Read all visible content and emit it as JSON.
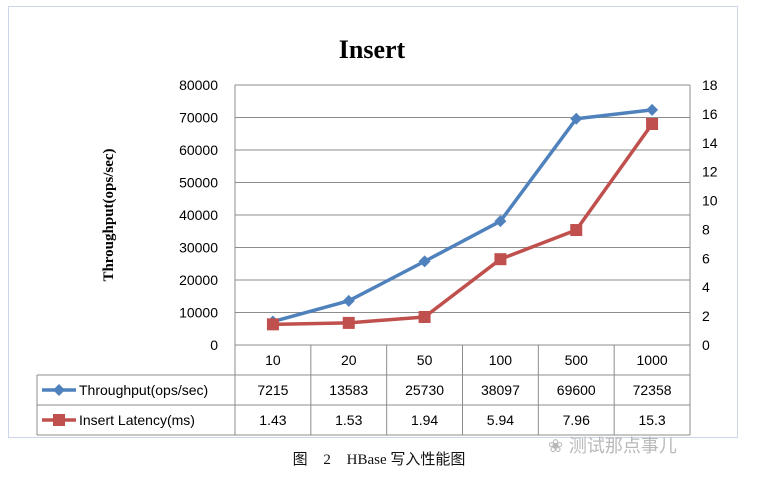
{
  "chart_data": {
    "type": "line",
    "title": "Insert",
    "ylabel": "Throughput(ops/sec)",
    "categories": [
      "10",
      "20",
      "50",
      "100",
      "500",
      "1000"
    ],
    "ylim": [
      0,
      80000
    ],
    "yticks": [
      0,
      10000,
      20000,
      30000,
      40000,
      50000,
      60000,
      70000,
      80000
    ],
    "y2lim": [
      0,
      18
    ],
    "y2ticks": [
      0,
      2,
      4,
      6,
      8,
      10,
      12,
      14,
      16,
      18
    ],
    "grid": true,
    "legend": "data-table-left",
    "series": [
      {
        "name": "Throughput(ops/sec)",
        "axis": "left",
        "color": "#4f81bd",
        "marker": "diamond",
        "values": [
          7215,
          13583,
          25730,
          38097,
          69600,
          72358
        ],
        "labels": [
          "7215",
          "13583",
          "25730",
          "38097",
          "69600",
          "72358"
        ]
      },
      {
        "name": "Insert Latency(ms)",
        "axis": "right",
        "color": "#c0504d",
        "marker": "square",
        "values": [
          1.43,
          1.53,
          1.94,
          5.94,
          7.96,
          15.3
        ],
        "labels": [
          "1.43",
          "1.53",
          "1.94",
          "5.94",
          "7.96",
          "15.3"
        ]
      }
    ]
  },
  "caption": {
    "figure": "图",
    "number": "2",
    "text": "HBase 写入性能图"
  },
  "watermark": "测试那点事儿"
}
